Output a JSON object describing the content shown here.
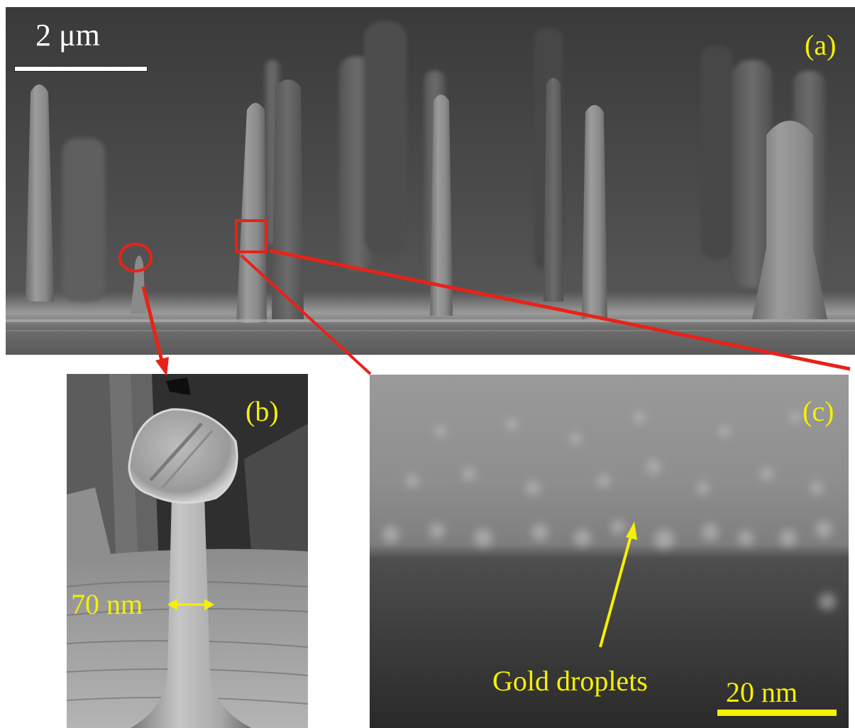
{
  "panels": {
    "a": {
      "label": "(a)",
      "scale_bar": "2 μm"
    },
    "b": {
      "label": "(b)",
      "measurement": "70 nm"
    },
    "c": {
      "label": "(c)",
      "annotation": "Gold droplets",
      "scale_bar": "20 nm"
    }
  },
  "colors": {
    "annotation_yellow": "#f5f000",
    "highlight_red": "#e8221a",
    "scale_bar_white": "#ffffff"
  }
}
